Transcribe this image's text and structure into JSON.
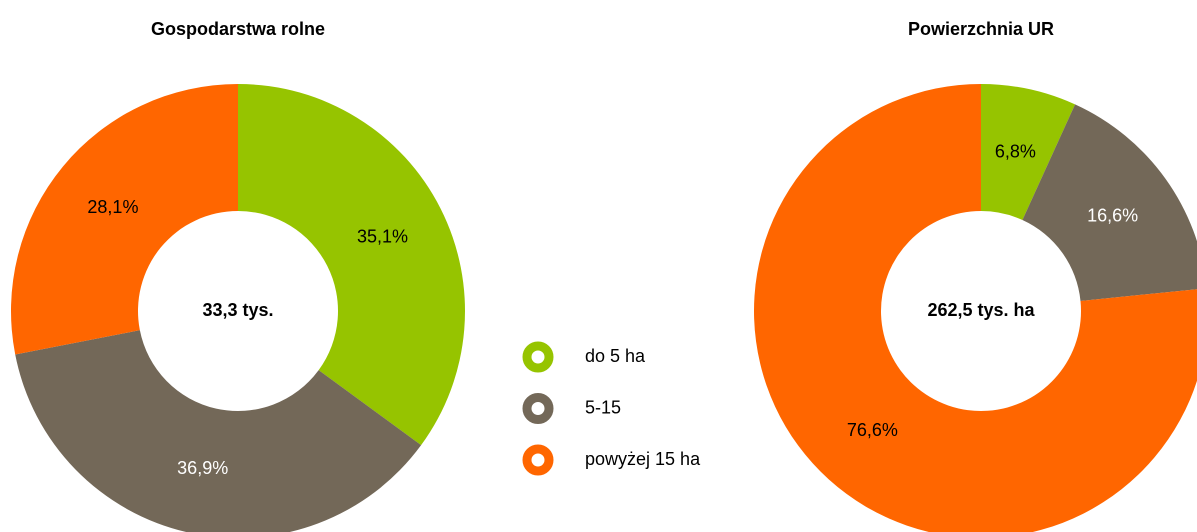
{
  "chart_data": [
    {
      "type": "donut",
      "title": "Gospodarstwa rolne",
      "center_label": "33,3 tys.",
      "categories": [
        "do 5 ha",
        "5-15",
        "powyżej 15 ha"
      ],
      "values": [
        35.1,
        36.9,
        28.1
      ],
      "value_labels": [
        "35,1%",
        "36,9%",
        "28,1%"
      ],
      "colors": [
        "#96c400",
        "#736858",
        "#ff6600"
      ],
      "label_colors": [
        "#000000",
        "#ffffff",
        "#000000"
      ],
      "legend": "right"
    },
    {
      "type": "donut",
      "title": "Powierzchnia UR",
      "center_label": "262,5 tys. ha",
      "categories": [
        "do 5 ha",
        "5-15",
        "powyżej 15 ha"
      ],
      "values": [
        6.8,
        16.6,
        76.6
      ],
      "value_labels": [
        "6,8%",
        "16,6%",
        "76,6%"
      ],
      "colors": [
        "#96c400",
        "#736858",
        "#ff6600"
      ],
      "label_colors": [
        "#000000",
        "#ffffff",
        "#000000"
      ]
    }
  ]
}
